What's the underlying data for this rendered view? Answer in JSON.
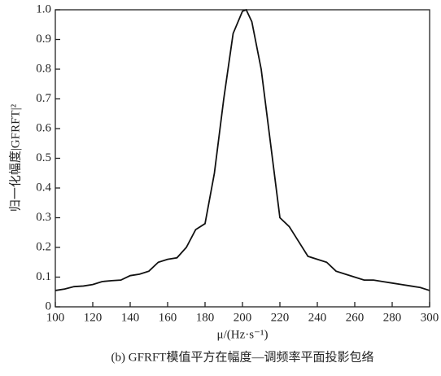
{
  "chart_data": {
    "type": "line",
    "ylabel": "归一化幅度|GFRFT|²",
    "xlabel": "μ/(Hz·s⁻¹)",
    "caption": "(b) GFRFT模值平方在幅度—调频率平面投影包络",
    "x": [
      100,
      105,
      110,
      115,
      120,
      125,
      130,
      135,
      140,
      145,
      150,
      155,
      160,
      165,
      170,
      175,
      180,
      185,
      190,
      195,
      200,
      202,
      205,
      210,
      215,
      220,
      225,
      230,
      235,
      240,
      245,
      250,
      255,
      260,
      265,
      270,
      275,
      280,
      285,
      290,
      295,
      300
    ],
    "series": [
      {
        "color": "#111111",
        "values": [
          0.055,
          0.06,
          0.068,
          0.07,
          0.075,
          0.085,
          0.088,
          0.09,
          0.105,
          0.11,
          0.12,
          0.15,
          0.16,
          0.165,
          0.2,
          0.26,
          0.28,
          0.45,
          0.7,
          0.92,
          0.995,
          1.0,
          0.96,
          0.8,
          0.55,
          0.3,
          0.27,
          0.22,
          0.17,
          0.16,
          0.15,
          0.12,
          0.11,
          0.1,
          0.09,
          0.09,
          0.085,
          0.08,
          0.075,
          0.07,
          0.065,
          0.055
        ]
      }
    ],
    "xlim": [
      100,
      300
    ],
    "xticks": [
      100,
      120,
      140,
      160,
      180,
      200,
      220,
      240,
      260,
      280,
      300
    ],
    "ylim": [
      0,
      1
    ],
    "yticks": [
      0,
      0.1,
      0.2,
      0.3,
      0.4,
      0.5,
      0.6,
      0.7,
      0.8,
      0.9,
      {
        "value": 1,
        "label": "1.0"
      }
    ]
  }
}
